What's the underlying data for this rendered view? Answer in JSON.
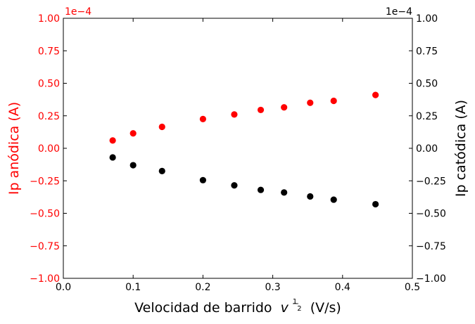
{
  "chart_data": {
    "type": "scatter",
    "xlabel": "Velocidad de barrido",
    "xlabel_var": "v",
    "xlabel_exp_num": "1",
    "xlabel_exp_den": "2",
    "xlabel_units": "(V/s)",
    "ylabel_left": "Ip anódica (A)",
    "ylabel_right": "Ip catódica (A)",
    "y_multiplier_left": "1e−4",
    "y_multiplier_right": "1e−4",
    "xlim": [
      0.0,
      0.5
    ],
    "ylim": [
      -1.0,
      1.0
    ],
    "x_ticks": [
      "0.0",
      "0.1",
      "0.2",
      "0.3",
      "0.4",
      "0.5"
    ],
    "y_ticks": [
      "−1.00",
      "−0.75",
      "−0.50",
      "−0.25",
      "0.00",
      "0.25",
      "0.50",
      "0.75",
      "1.00"
    ],
    "grid": false,
    "colors": {
      "left_axis": "#ff0000",
      "right_axis": "#000000",
      "anodic": "#ff0000",
      "cathodic": "#000000"
    },
    "series": [
      {
        "axis": "left",
        "color": "#ff0000",
        "x": [
          0.0707,
          0.1,
          0.1414,
          0.2,
          0.2449,
          0.2828,
          0.3162,
          0.3536,
          0.3873,
          0.4472
        ],
        "y": [
          0.06,
          0.115,
          0.165,
          0.225,
          0.26,
          0.295,
          0.315,
          0.35,
          0.365,
          0.41
        ]
      },
      {
        "axis": "right",
        "color": "#000000",
        "x": [
          0.0707,
          0.1,
          0.1414,
          0.2,
          0.2449,
          0.2828,
          0.3162,
          0.3536,
          0.3873,
          0.4472
        ],
        "y": [
          -0.07,
          -0.13,
          -0.175,
          -0.245,
          -0.285,
          -0.32,
          -0.34,
          -0.37,
          -0.395,
          -0.43
        ]
      }
    ]
  }
}
